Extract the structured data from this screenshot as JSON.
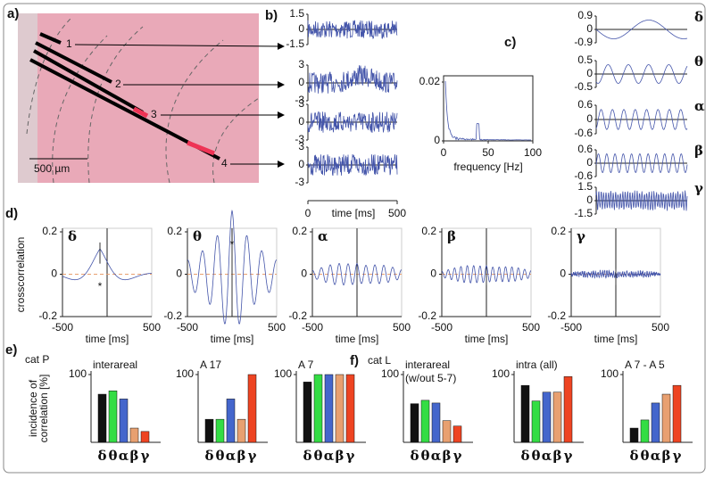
{
  "figure": {
    "panel_labels": [
      "a)",
      "b)",
      "c)",
      "d)",
      "e)",
      "f)"
    ],
    "a": {
      "electrodes": [
        "1",
        "2",
        "3",
        "4"
      ],
      "scale": "500 µm"
    },
    "b": {
      "traces": [
        {
          "yticks": [
            1.5,
            0,
            -1.5
          ]
        },
        {
          "yticks": [
            3,
            0,
            -3
          ]
        },
        {
          "yticks": [
            3,
            0,
            -3
          ]
        },
        {
          "yticks": [
            3,
            0,
            -3
          ]
        }
      ],
      "xticks": [
        0,
        500
      ],
      "xlabel": "time [ms]",
      "spectrum": {
        "yticks": [
          0.02,
          0
        ],
        "xticks": [
          0,
          50,
          100
        ],
        "xlabel": "frequency [Hz]"
      }
    },
    "c": {
      "bands": [
        {
          "name": "δ",
          "yticks": [
            0.9,
            0,
            -0.9
          ]
        },
        {
          "name": "θ",
          "yticks": [
            0.5,
            0,
            -0.5
          ]
        },
        {
          "name": "α",
          "yticks": [
            0.6,
            0,
            -0.6
          ]
        },
        {
          "name": "β",
          "yticks": [
            0.6,
            0,
            -0.6
          ]
        },
        {
          "name": "γ",
          "yticks": [
            1.5,
            0,
            -1.5
          ]
        }
      ]
    },
    "d": {
      "ylabel": "crosscorrelation",
      "yticks": [
        0.2,
        0,
        -0.2
      ],
      "xticks": [
        -500,
        500
      ],
      "xlabel": "time [ms]",
      "bands": [
        "δ",
        "θ",
        "α",
        "β",
        "γ"
      ],
      "asterisks": [
        "*",
        "*"
      ]
    },
    "e": {
      "cat": "cat P"
    },
    "f": {
      "cat": "cat L"
    },
    "bar_ylabel": [
      "incidence of",
      "correlation [%]"
    ]
  },
  "chart_data": [
    {
      "type": "bar",
      "title": "interareal",
      "categories": [
        "δ",
        "θ",
        "α",
        "β",
        "γ"
      ],
      "values": [
        71,
        76,
        64,
        21,
        16
      ],
      "colors": [
        "#111111",
        "#33dd44",
        "#4466cc",
        "#e8a070",
        "#ee4422"
      ],
      "ylim": [
        0,
        100
      ],
      "yticks": [
        100
      ]
    },
    {
      "type": "bar",
      "title": "A 17",
      "categories": [
        "δ",
        "θ",
        "α",
        "β",
        "γ"
      ],
      "values": [
        34,
        34,
        64,
        34,
        100
      ],
      "colors": [
        "#111111",
        "#33dd44",
        "#4466cc",
        "#e8a070",
        "#ee4422"
      ],
      "ylim": [
        0,
        100
      ],
      "yticks": [
        100
      ]
    },
    {
      "type": "bar",
      "title": "A 7",
      "categories": [
        "δ",
        "θ",
        "α",
        "β",
        "γ"
      ],
      "values": [
        89,
        100,
        100,
        100,
        100
      ],
      "colors": [
        "#111111",
        "#33dd44",
        "#4466cc",
        "#e8a070",
        "#ee4422"
      ],
      "ylim": [
        0,
        100
      ],
      "yticks": [
        100
      ]
    },
    {
      "type": "bar",
      "title": "interareal",
      "subtitle": "(w/out 5-7)",
      "categories": [
        "δ",
        "θ",
        "α",
        "β",
        "γ"
      ],
      "values": [
        57,
        62,
        58,
        32,
        24
      ],
      "colors": [
        "#111111",
        "#33dd44",
        "#4466cc",
        "#e8a070",
        "#ee4422"
      ],
      "ylim": [
        0,
        100
      ],
      "yticks": [
        100
      ]
    },
    {
      "type": "bar",
      "title": "intra (all)",
      "categories": [
        "δ",
        "θ",
        "α",
        "β",
        "γ"
      ],
      "values": [
        84,
        61,
        74,
        74,
        97
      ],
      "colors": [
        "#111111",
        "#33dd44",
        "#4466cc",
        "#e8a070",
        "#ee4422"
      ],
      "ylim": [
        0,
        100
      ],
      "yticks": [
        100
      ]
    },
    {
      "type": "bar",
      "title": "A 7 - A 5",
      "categories": [
        "δ",
        "θ",
        "α",
        "β",
        "γ"
      ],
      "values": [
        21,
        33,
        58,
        71,
        84
      ],
      "colors": [
        "#111111",
        "#33dd44",
        "#4466cc",
        "#e8a070",
        "#ee4422"
      ],
      "ylim": [
        0,
        100
      ],
      "yticks": [
        100
      ]
    }
  ]
}
